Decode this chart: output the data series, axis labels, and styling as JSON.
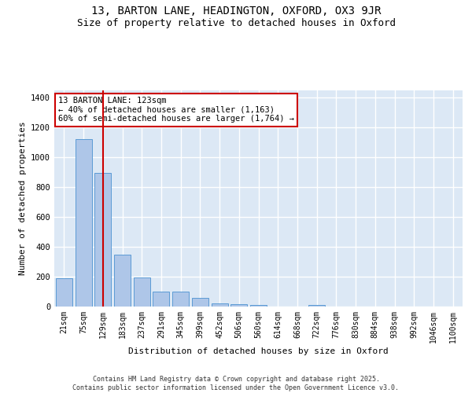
{
  "title1": "13, BARTON LANE, HEADINGTON, OXFORD, OX3 9JR",
  "title2": "Size of property relative to detached houses in Oxford",
  "xlabel": "Distribution of detached houses by size in Oxford",
  "ylabel": "Number of detached properties",
  "categories": [
    "21sqm",
    "75sqm",
    "129sqm",
    "183sqm",
    "237sqm",
    "291sqm",
    "345sqm",
    "399sqm",
    "452sqm",
    "506sqm",
    "560sqm",
    "614sqm",
    "668sqm",
    "722sqm",
    "776sqm",
    "830sqm",
    "884sqm",
    "938sqm",
    "992sqm",
    "1046sqm",
    "1100sqm"
  ],
  "values": [
    190,
    1125,
    895,
    350,
    195,
    100,
    100,
    60,
    22,
    18,
    13,
    0,
    0,
    8,
    0,
    0,
    0,
    0,
    0,
    0,
    0
  ],
  "bar_color": "#aec6e8",
  "bar_edge_color": "#5b9bd5",
  "vline_x": 2,
  "vline_color": "#cc0000",
  "annotation_box_text": "13 BARTON LANE: 123sqm\n← 40% of detached houses are smaller (1,163)\n60% of semi-detached houses are larger (1,764) →",
  "annotation_box_color": "#cc0000",
  "annotation_text_color": "#000000",
  "background_color": "#dce8f5",
  "grid_color": "#ffffff",
  "ylim": [
    0,
    1450
  ],
  "yticks": [
    0,
    200,
    400,
    600,
    800,
    1000,
    1200,
    1400
  ],
  "footer_line1": "Contains HM Land Registry data © Crown copyright and database right 2025.",
  "footer_line2": "Contains public sector information licensed under the Open Government Licence v3.0.",
  "title1_fontsize": 10,
  "title2_fontsize": 9,
  "tick_fontsize": 7,
  "ylabel_fontsize": 8,
  "xlabel_fontsize": 8,
  "annotation_fontsize": 7.5,
  "footer_fontsize": 6
}
